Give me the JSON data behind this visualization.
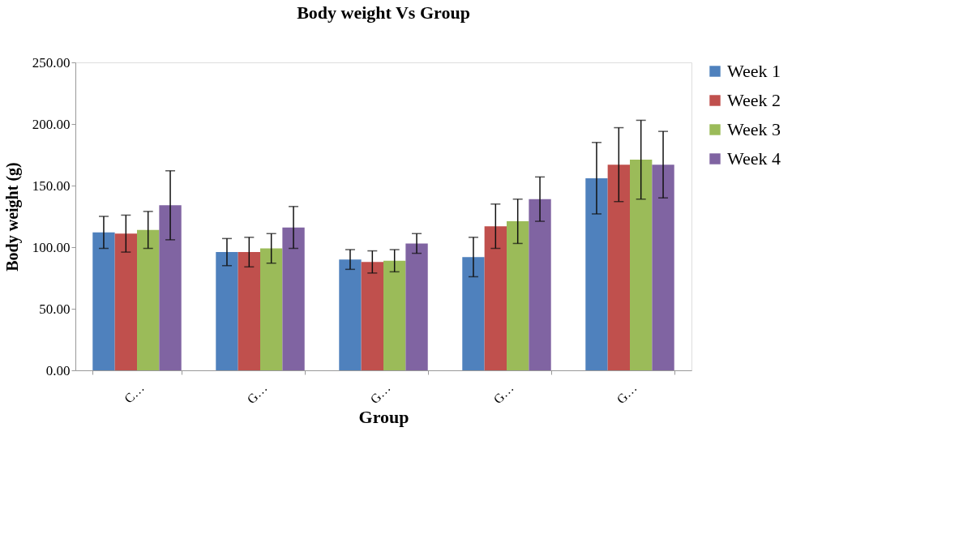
{
  "chart_data": {
    "type": "bar",
    "title": "Body weight Vs Group",
    "xlabel": "Group",
    "ylabel": "Body weight (g)",
    "categories": [
      "C…",
      "G…",
      "G…",
      "G…",
      "G…"
    ],
    "series": [
      {
        "name": "Week 1",
        "color": "#4f81bd",
        "values": [
          112,
          96,
          90,
          92,
          156
        ],
        "errors": [
          13,
          11,
          8,
          16,
          29
        ]
      },
      {
        "name": "Week 2",
        "color": "#c0504d",
        "values": [
          111,
          96,
          88,
          117,
          167
        ],
        "errors": [
          15,
          12,
          9,
          18,
          30
        ]
      },
      {
        "name": "Week 3",
        "color": "#9bbb59",
        "values": [
          114,
          99,
          89,
          121,
          171
        ],
        "errors": [
          15,
          12,
          9,
          18,
          32
        ]
      },
      {
        "name": "Week 4",
        "color": "#8064a2",
        "values": [
          134,
          116,
          103,
          139,
          167
        ],
        "errors": [
          28,
          17,
          8,
          18,
          27
        ]
      }
    ],
    "ylim": [
      0,
      250
    ],
    "yticks": [
      {
        "value": 0,
        "label": "0.00"
      },
      {
        "value": 50,
        "label": "50.00"
      },
      {
        "value": 100,
        "label": "100.00"
      },
      {
        "value": 150,
        "label": "150.00"
      },
      {
        "value": 200,
        "label": "200.00"
      },
      {
        "value": 250,
        "label": "250.00"
      }
    ],
    "grid": false,
    "legend": "right"
  }
}
